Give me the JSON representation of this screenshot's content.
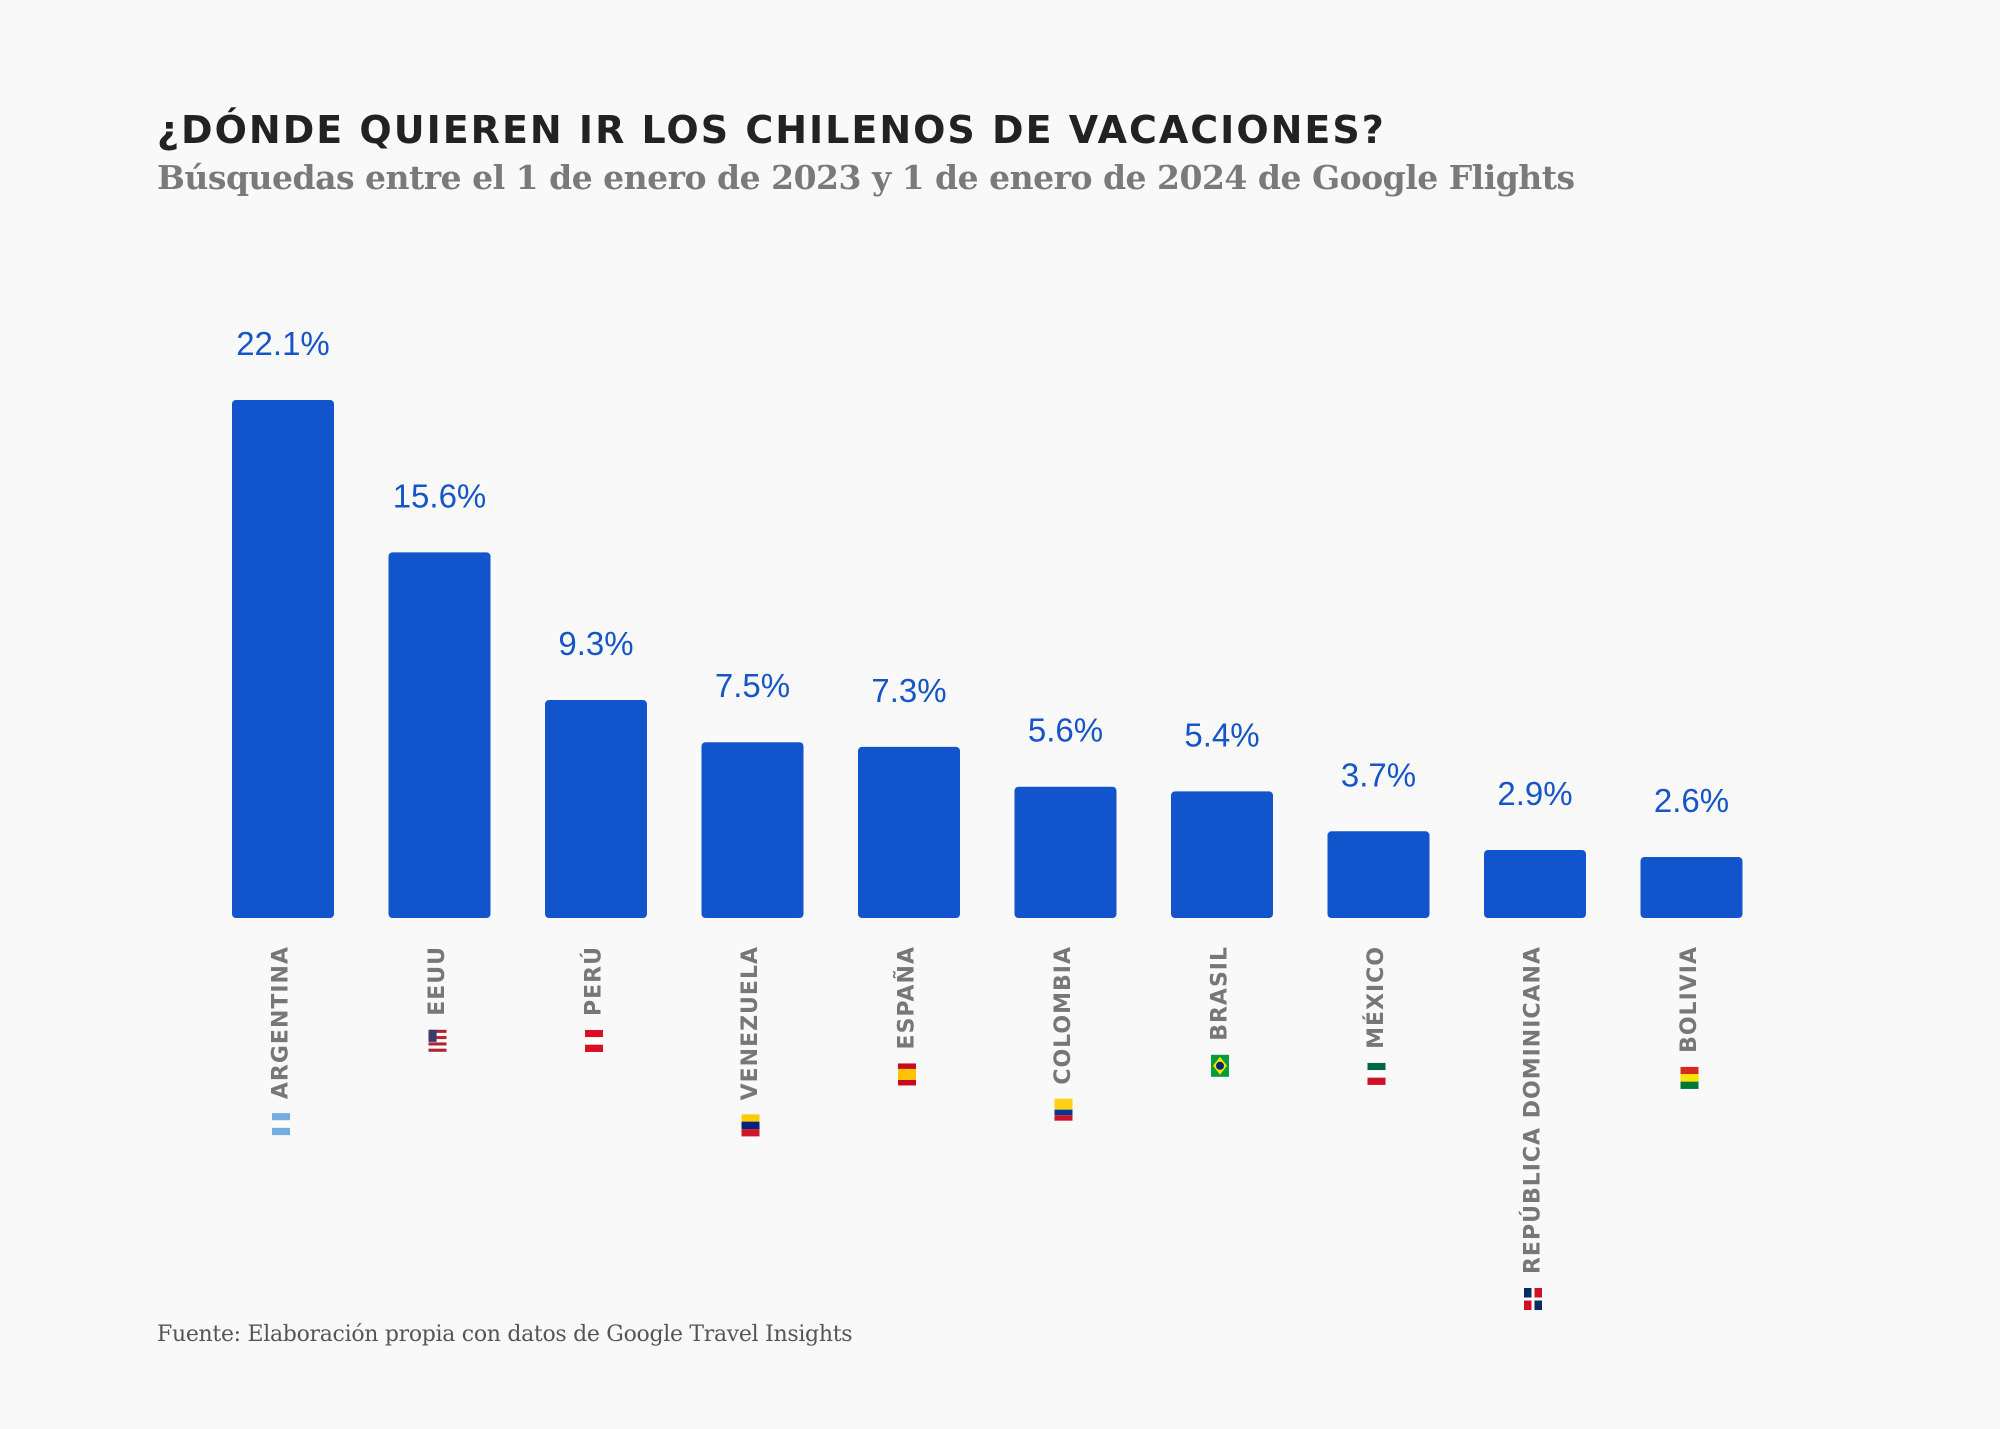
{
  "title": "¿DÓNDE QUIEREN IR LOS CHILENOS DE VACACIONES?",
  "subtitle": "Búsquedas entre el 1 de enero de 2023 y 1 de enero de 2024 de Google Flights",
  "source": "Fuente: Elaboración propia con datos de Google Travel Insights",
  "colors": {
    "bar": "#1254cc",
    "value_label": "#1655c8",
    "category_label": "#777777"
  },
  "chart_data": {
    "type": "bar",
    "categories": [
      "ARGENTINA",
      "EEUU",
      "PERÚ",
      "VENEZUELA",
      "ESPAÑA",
      "COLOMBIA",
      "BRASIL",
      "MÉXICO",
      "REPÚBLICA DOMINICANA",
      "BOLIVIA"
    ],
    "flags": [
      "argentina-flag-icon",
      "usa-flag-icon",
      "peru-flag-icon",
      "venezuela-flag-icon",
      "spain-flag-icon",
      "colombia-flag-icon",
      "brazil-flag-icon",
      "mexico-flag-icon",
      "dominican-republic-flag-icon",
      "bolivia-flag-icon"
    ],
    "values": [
      22.1,
      15.6,
      9.3,
      7.5,
      7.3,
      5.6,
      5.4,
      3.7,
      2.9,
      2.6
    ],
    "value_labels": [
      "22.1%",
      "15.6%",
      "9.3%",
      "7.5%",
      "7.3%",
      "5.6%",
      "5.4%",
      "3.7%",
      "2.9%",
      "2.6%"
    ],
    "title": "¿DÓNDE QUIEREN IR LOS CHILENOS DE VACACIONES?",
    "xlabel": "",
    "ylabel": "",
    "ylim": [
      0,
      22.1
    ],
    "grid": false,
    "legend": "none"
  }
}
